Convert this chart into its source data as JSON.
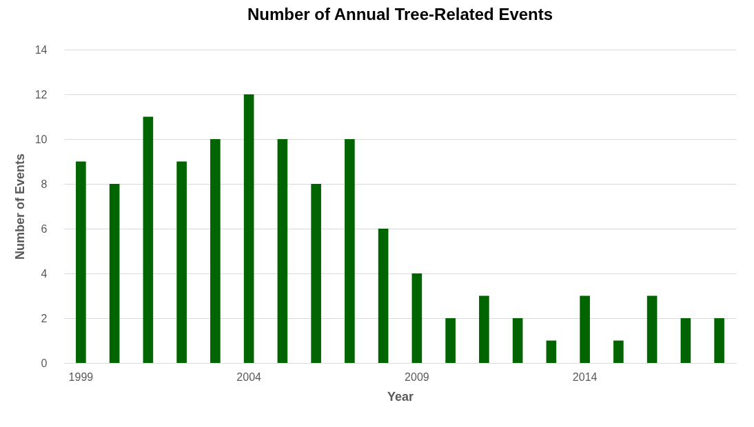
{
  "chart_data": {
    "type": "bar",
    "title": "Number of Annual Tree-Related Events",
    "xlabel": "Year",
    "ylabel": "Number of Events",
    "categories": [
      "1999",
      null,
      null,
      null,
      null,
      "2004",
      null,
      null,
      null,
      null,
      "2009",
      null,
      null,
      null,
      null,
      "2014",
      null,
      null,
      null,
      null
    ],
    "values": [
      9,
      8,
      11,
      9,
      10,
      12,
      10,
      8,
      10,
      6,
      4,
      2,
      3,
      2,
      1,
      3,
      1,
      3,
      2,
      2
    ],
    "color": "#006400",
    "ylim": [
      0,
      14
    ],
    "yticks": [
      0,
      2,
      4,
      6,
      8,
      10,
      12,
      14
    ],
    "grid": "y"
  }
}
